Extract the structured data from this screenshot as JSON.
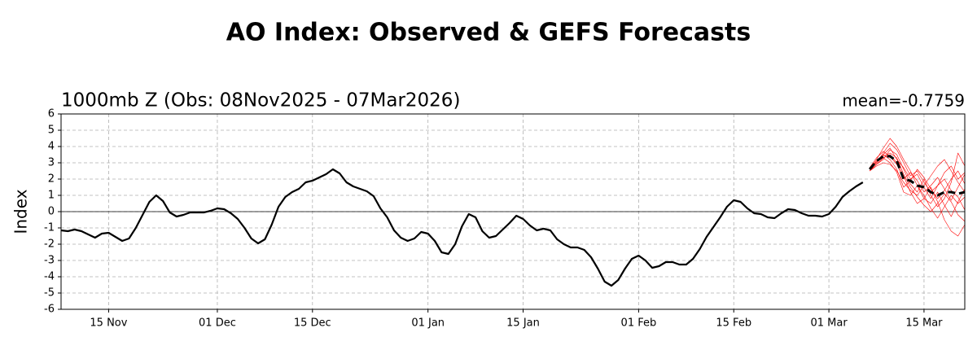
{
  "chart_data": {
    "type": "line",
    "title": "AO Index: Observed & GEFS Forecasts",
    "subtitle": "1000mb Z (Obs: 08Nov2025 - 07Mar2026)",
    "annotation": "mean=-0.7759",
    "y_label": "Index",
    "title_color": "#0a0ae6",
    "xlim": [
      0,
      133
    ],
    "xticks": [
      {
        "value": 7,
        "label": "15 Nov"
      },
      {
        "value": 23,
        "label": "01 Dec"
      },
      {
        "value": 37,
        "label": "15 Dec"
      },
      {
        "value": 54,
        "label": "01 Jan"
      },
      {
        "value": 68,
        "label": "15 Jan"
      },
      {
        "value": 85,
        "label": "01 Feb"
      },
      {
        "value": 99,
        "label": "15 Feb"
      },
      {
        "value": 113,
        "label": "01 Mar"
      },
      {
        "value": 127,
        "label": "15 Mar"
      }
    ],
    "ylim": [
      -6,
      6
    ],
    "yticks": [
      -6,
      -5,
      -4,
      -3,
      -2,
      -1,
      0,
      1,
      2,
      3,
      4,
      5,
      6
    ],
    "grid": true,
    "zero_line": 0,
    "series": [
      {
        "color": "#ff0000",
        "width": 0.6,
        "dash": false,
        "x": [
          119,
          120,
          121,
          122,
          123,
          124,
          125,
          126,
          127,
          128,
          129,
          130,
          131,
          132,
          133
        ],
        "values": [
          2.6,
          3.0,
          3.6,
          4.2,
          3.8,
          3.0,
          2.2,
          2.5,
          1.8,
          1.2,
          1.6,
          2.4,
          2.8,
          2.0,
          2.4
        ]
      },
      {
        "color": "#ff0000",
        "width": 0.6,
        "dash": false,
        "x": [
          119,
          120,
          121,
          122,
          123,
          124,
          125,
          126,
          127,
          128,
          129,
          130,
          131,
          132,
          133
        ],
        "values": [
          2.5,
          2.9,
          3.3,
          3.5,
          3.0,
          2.2,
          1.2,
          0.5,
          0.8,
          1.5,
          0.6,
          -0.5,
          -1.2,
          -1.5,
          -0.8
        ]
      },
      {
        "color": "#ff0000",
        "width": 0.6,
        "dash": false,
        "x": [
          119,
          120,
          121,
          122,
          123,
          124,
          125,
          126,
          127,
          128,
          129,
          130,
          131,
          132,
          133
        ],
        "values": [
          2.6,
          3.1,
          3.5,
          3.2,
          2.6,
          1.5,
          1.9,
          2.6,
          2.1,
          1.4,
          0.8,
          1.3,
          2.0,
          2.5,
          1.7
        ]
      },
      {
        "color": "#ff0000",
        "width": 0.6,
        "dash": false,
        "x": [
          119,
          120,
          121,
          122,
          123,
          124,
          125,
          126,
          127,
          128,
          129,
          130,
          131,
          132,
          133
        ],
        "values": [
          2.6,
          3.2,
          3.9,
          4.5,
          4.0,
          3.2,
          2.5,
          1.6,
          1.0,
          0.2,
          -0.4,
          0.3,
          1.0,
          0.5,
          0.9
        ]
      },
      {
        "color": "#ff0000",
        "width": 0.6,
        "dash": false,
        "x": [
          119,
          120,
          121,
          122,
          123,
          124,
          125,
          126,
          127,
          128,
          129,
          130,
          131,
          132,
          133
        ],
        "values": [
          2.5,
          2.8,
          3.0,
          2.9,
          2.5,
          1.8,
          1.3,
          1.0,
          1.6,
          2.2,
          2.8,
          3.2,
          2.5,
          1.8,
          1.2
        ]
      },
      {
        "color": "#ff0000",
        "width": 0.6,
        "dash": false,
        "x": [
          119,
          120,
          121,
          122,
          123,
          124,
          125,
          126,
          127,
          128,
          129,
          130,
          131,
          132,
          133
        ],
        "values": [
          2.6,
          3.0,
          3.4,
          3.6,
          3.3,
          2.3,
          1.5,
          0.9,
          0.4,
          0.0,
          0.5,
          1.1,
          0.6,
          -0.2,
          -0.6
        ]
      },
      {
        "color": "#ff0000",
        "width": 0.6,
        "dash": false,
        "x": [
          119,
          120,
          121,
          122,
          123,
          124,
          125,
          126,
          127,
          128,
          129,
          130,
          131,
          132,
          133
        ],
        "values": [
          2.7,
          3.3,
          3.7,
          3.4,
          2.9,
          2.0,
          2.4,
          1.9,
          1.2,
          1.6,
          2.1,
          1.4,
          0.7,
          1.5,
          2.3
        ]
      },
      {
        "color": "#ff0000",
        "width": 0.6,
        "dash": false,
        "x": [
          119,
          120,
          121,
          122,
          123,
          124,
          125,
          126,
          127,
          128,
          129,
          130,
          131,
          132,
          133
        ],
        "values": [
          2.5,
          2.9,
          3.2,
          3.8,
          3.5,
          2.6,
          1.7,
          1.2,
          2.0,
          1.0,
          0.3,
          0.8,
          1.8,
          3.6,
          2.8
        ]
      },
      {
        "color": "#ff0000",
        "width": 0.6,
        "dash": false,
        "x": [
          119,
          120,
          121,
          122,
          123,
          124,
          125,
          126,
          127,
          128,
          129,
          130,
          131,
          132,
          133
        ],
        "values": [
          2.6,
          3.1,
          3.3,
          3.0,
          2.4,
          1.2,
          1.0,
          1.6,
          0.8,
          0.5,
          1.2,
          0.4,
          -0.3,
          0.6,
          1.4
        ]
      },
      {
        "color": "#ff0000",
        "width": 0.6,
        "dash": false,
        "x": [
          119,
          120,
          121,
          122,
          123,
          124,
          125,
          126,
          127,
          128,
          129,
          130,
          131,
          132,
          133
        ],
        "values": [
          2.6,
          3.0,
          3.5,
          3.9,
          3.2,
          2.7,
          2.0,
          2.3,
          1.5,
          0.8,
          1.6,
          2.0,
          1.3,
          0.9,
          0.1
        ]
      },
      {
        "color": "#000000",
        "width": 2.2,
        "dash": false,
        "x": [
          0,
          1,
          2,
          3,
          4,
          5,
          6,
          7,
          8,
          9,
          10,
          11,
          12,
          13,
          14,
          15,
          16,
          17,
          18,
          19,
          20,
          21,
          22,
          23,
          24,
          25,
          26,
          27,
          28,
          29,
          30,
          31,
          32,
          33,
          34,
          35,
          36,
          37,
          38,
          39,
          40,
          41,
          42,
          43,
          44,
          45,
          46,
          47,
          48,
          49,
          50,
          51,
          52,
          53,
          54,
          55,
          56,
          57,
          58,
          59,
          60,
          61,
          62,
          63,
          64,
          65,
          66,
          67,
          68,
          69,
          70,
          71,
          72,
          73,
          74,
          75,
          76,
          77,
          78,
          79,
          80,
          81,
          82,
          83,
          84,
          85,
          86,
          87,
          88,
          89,
          90,
          91,
          92,
          93,
          94,
          95,
          96,
          97,
          98,
          99,
          100,
          101,
          102,
          103,
          104,
          105,
          106,
          107,
          108,
          109,
          110,
          111,
          112,
          113,
          114,
          115,
          116,
          117,
          118
        ],
        "values": [
          -1.15,
          -1.2,
          -1.1,
          -1.2,
          -1.4,
          -1.6,
          -1.35,
          -1.3,
          -1.55,
          -1.8,
          -1.65,
          -1.0,
          -0.2,
          0.6,
          1.0,
          0.65,
          -0.05,
          -0.3,
          -0.2,
          -0.05,
          -0.05,
          -0.05,
          0.05,
          0.2,
          0.15,
          -0.1,
          -0.45,
          -1.0,
          -1.65,
          -1.95,
          -1.7,
          -0.8,
          0.3,
          0.9,
          1.2,
          1.4,
          1.8,
          1.9,
          2.1,
          2.3,
          2.6,
          2.35,
          1.8,
          1.55,
          1.4,
          1.25,
          0.95,
          0.2,
          -0.35,
          -1.15,
          -1.6,
          -1.8,
          -1.65,
          -1.25,
          -1.35,
          -1.8,
          -2.5,
          -2.6,
          -2.0,
          -0.9,
          -0.15,
          -0.35,
          -1.2,
          -1.6,
          -1.5,
          -1.1,
          -0.7,
          -0.25,
          -0.45,
          -0.85,
          -1.15,
          -1.05,
          -1.15,
          -1.7,
          -2.0,
          -2.2,
          -2.2,
          -2.35,
          -2.8,
          -3.5,
          -4.3,
          -4.55,
          -4.2,
          -3.5,
          -2.9,
          -2.7,
          -3.0,
          -3.45,
          -3.35,
          -3.1,
          -3.1,
          -3.25,
          -3.25,
          -2.9,
          -2.3,
          -1.55,
          -0.95,
          -0.35,
          0.3,
          0.7,
          0.6,
          0.2,
          -0.1,
          -0.15,
          -0.35,
          -0.4,
          -0.1,
          0.15,
          0.1,
          -0.1,
          -0.25,
          -0.25,
          -0.3,
          -0.15,
          0.3,
          0.9,
          1.25,
          1.55,
          1.8
        ]
      },
      {
        "color": "#000000",
        "width": 3,
        "dash": true,
        "x": [
          119,
          120,
          121,
          122,
          123,
          124,
          125,
          126,
          127,
          128,
          129,
          130,
          131,
          132,
          133
        ],
        "values": [
          2.6,
          3.1,
          3.4,
          3.4,
          3.1,
          2.0,
          1.9,
          1.6,
          1.5,
          1.2,
          1.0,
          1.2,
          1.2,
          1.1,
          1.2
        ]
      }
    ]
  }
}
